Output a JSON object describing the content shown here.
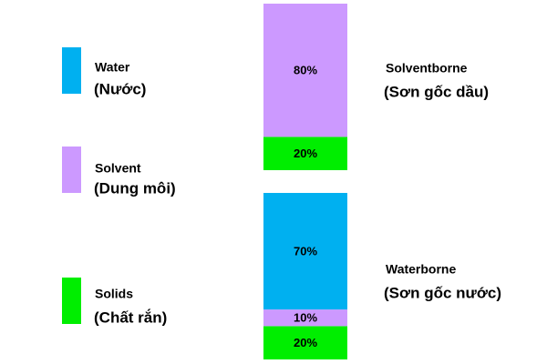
{
  "chart_data": {
    "type": "stacked-bar",
    "categories": [
      "Solventborne",
      "Waterborne"
    ],
    "category_translations": [
      "(Sơn gốc dầu)",
      "(Sơn gốc nước)"
    ],
    "series": [
      {
        "name": "Water",
        "translation": "(Nước)",
        "color": "#00b0f0",
        "values": [
          null,
          70
        ],
        "value_labels": [
          null,
          "70%"
        ]
      },
      {
        "name": "Solvent",
        "translation": "(Dung môi)",
        "color": "#cc99ff",
        "values": [
          80,
          10
        ],
        "value_labels": [
          "80%",
          "10%"
        ]
      },
      {
        "name": "Solids",
        "translation": "(Chất rắn)",
        "color": "#00ee00",
        "values": [
          20,
          20
        ],
        "value_labels": [
          "20%",
          "20%"
        ]
      }
    ]
  }
}
